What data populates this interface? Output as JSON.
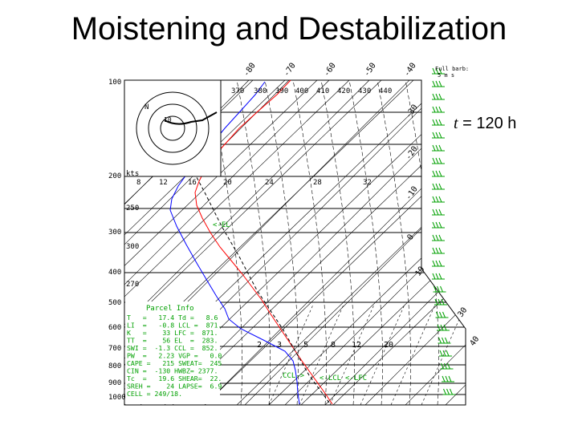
{
  "slide": {
    "title": "Moistening and Destabilization",
    "time_var": "t",
    "time_value": " = 120 h"
  },
  "skewt": {
    "pressure_ticks": [
      "100",
      "200",
      "300",
      "400",
      "500",
      "600",
      "700",
      "800",
      "900",
      "1000"
    ],
    "inset_pressures": [
      "250",
      "300",
      "270"
    ],
    "temp_top_labels": [
      "-80",
      "-70",
      "-60",
      "-50",
      "-40"
    ],
    "temp_right_labels": [
      "-30",
      "-20",
      "-10",
      "0",
      "10",
      "30",
      "40"
    ],
    "theta_labels": [
      "370",
      "380",
      "390",
      "400",
      "410",
      "420",
      "430",
      "440"
    ],
    "mixing_ratio_labels": [
      "8",
      "12",
      "16",
      "20",
      "24",
      "28",
      "32"
    ],
    "mixing_lower_labels": [
      "2",
      "3",
      "5",
      "8",
      "12",
      "20"
    ],
    "wind_legend": [
      "Full barb:",
      "5 m s"
    ],
    "hodograph_label": "kts",
    "hodograph_marks": [
      "N",
      "10"
    ],
    "markers": {
      "el": "<-EL",
      "lcl": "<-LCL",
      "lfc": "<-LFC",
      "ccl": "CCL->"
    },
    "parcel_info_title": "Parcel Info",
    "parcel_rows": [
      "T   =   17.4 Td =   8.6",
      "LI  =   -0.8 LCL =  871.",
      "K   =    33 LFC =  871.",
      "TT  =    56 EL  =  283.",
      "SWI =  -1.3 CCL =  852.",
      "PW  =   2.23 VGP =   0.0",
      "CAPE =   215 SWEAT=  245",
      "CIN =  -130 HWBZ= 2377.",
      "Tc  =   19.6 SHEAR=  22.",
      "SREH =    24 LAPSE=  6.9",
      "CELL = 249/18."
    ],
    "colors": {
      "temperature": "#ff0000",
      "dewpoint": "#0000ff",
      "text": "#00a000",
      "grid": "#000000"
    }
  }
}
